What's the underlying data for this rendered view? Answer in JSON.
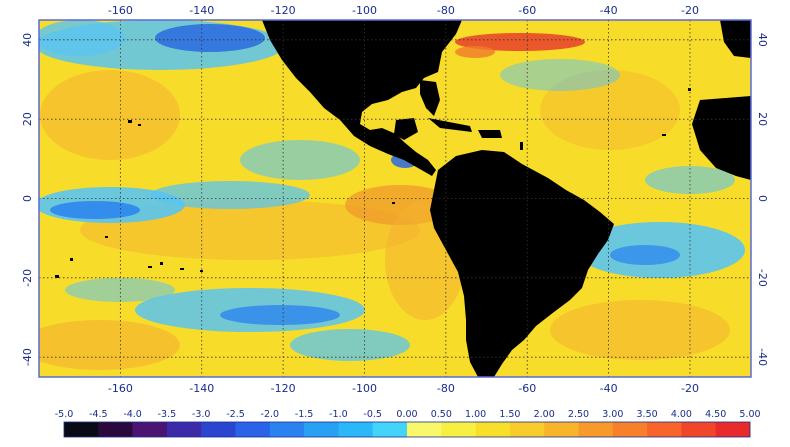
{
  "map": {
    "lon_ticks": [
      "-160",
      "-140",
      "-120",
      "-100",
      "-80",
      "-60",
      "-40",
      "-20"
    ],
    "lat_ticks": [
      "40",
      "20",
      "0",
      "-20",
      "-40"
    ],
    "colorbar": {
      "labels": [
        "-5.0",
        "-4.5",
        "-4.0",
        "-3.5",
        "-3.0",
        "-2.5",
        "-2.0",
        "-1.5",
        "-1.0",
        "-0.5",
        "0.00",
        "0.50",
        "1.00",
        "1.50",
        "2.00",
        "2.50",
        "3.00",
        "3.50",
        "4.00",
        "4.50",
        "5.00"
      ],
      "colors": [
        "#0a0a14",
        "#2a0a3c",
        "#4a1470",
        "#3c2aa8",
        "#2a46d0",
        "#2a62e8",
        "#2a82f0",
        "#28a0f4",
        "#2ab8f8",
        "#44d4fa",
        "#f8f86a",
        "#f8f040",
        "#f8e02a",
        "#f8cc2a",
        "#f8b42a",
        "#f89a2a",
        "#f8802a",
        "#f8642a",
        "#f0462a",
        "#e82a2a"
      ]
    },
    "colors": {
      "land": "#000000",
      "frame": "#5a6ad8",
      "grid": "#333333",
      "ocean_warm": "#f8dc2a",
      "ocean_warmer": "#f4b030",
      "ocean_cool": "#5ac4f0",
      "ocean_cold": "#2a6ae0",
      "ocean_hot": "#e8402a"
    }
  }
}
